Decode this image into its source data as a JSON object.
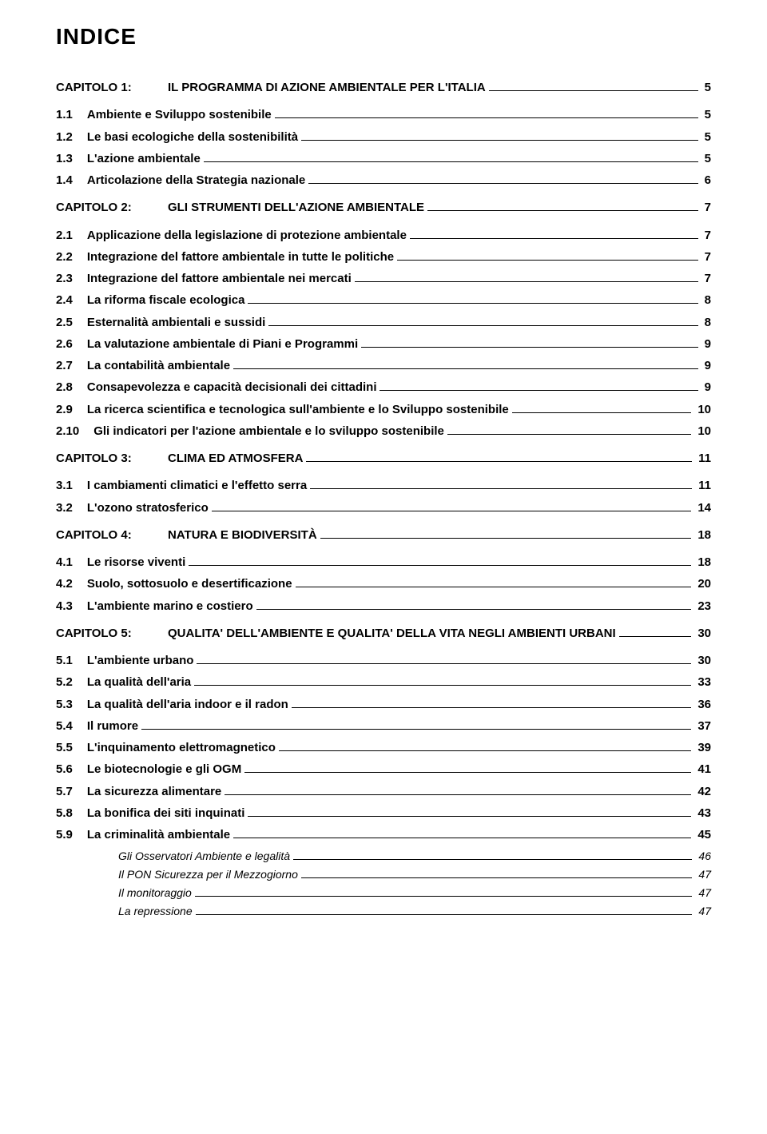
{
  "title": "INDICE",
  "toc": [
    {
      "type": "chapter",
      "num": "CAPITOLO 1:",
      "label": "IL PROGRAMMA DI AZIONE AMBIENTALE PER L'ITALIA",
      "page": "5"
    },
    {
      "type": "entry",
      "num": "1.1",
      "label": "Ambiente e Sviluppo sostenibile",
      "page": "5"
    },
    {
      "type": "entry",
      "num": "1.2",
      "label": "Le basi ecologiche della sostenibilità",
      "page": "5"
    },
    {
      "type": "entry",
      "num": "1.3",
      "label": "L'azione ambientale",
      "page": "5"
    },
    {
      "type": "entry",
      "num": "1.4",
      "label": "Articolazione della Strategia nazionale",
      "page": "6"
    },
    {
      "type": "chapter",
      "num": "CAPITOLO 2:",
      "label": "GLI STRUMENTI DELL'AZIONE AMBIENTALE",
      "page": "7"
    },
    {
      "type": "entry",
      "num": "2.1",
      "label": "Applicazione della legislazione di protezione ambientale",
      "page": "7"
    },
    {
      "type": "entry",
      "num": "2.2",
      "label": "Integrazione del fattore ambientale in tutte le politiche",
      "page": "7"
    },
    {
      "type": "entry",
      "num": "2.3",
      "label": "Integrazione del fattore ambientale nei mercati",
      "page": "7"
    },
    {
      "type": "entry",
      "num": "2.4",
      "label": "La riforma fiscale ecologica",
      "page": "8"
    },
    {
      "type": "entry",
      "num": "2.5",
      "label": "Esternalità ambientali e sussidi",
      "page": "8"
    },
    {
      "type": "entry",
      "num": "2.6",
      "label": "La valutazione ambientale di Piani e Programmi",
      "page": "9"
    },
    {
      "type": "entry",
      "num": "2.7",
      "label": "La contabilità ambientale",
      "page": "9"
    },
    {
      "type": "entry",
      "num": "2.8",
      "label": "Consapevolezza e capacità decisionali dei cittadini",
      "page": "9"
    },
    {
      "type": "entry",
      "num": "2.9",
      "label": "La ricerca scientifica e tecnologica sull'ambiente e lo Sviluppo sostenibile",
      "page": "10"
    },
    {
      "type": "entry",
      "num": "2.10",
      "label": "Gli indicatori per l'azione ambientale e lo sviluppo sostenibile",
      "page": "10"
    },
    {
      "type": "chapter",
      "num": "CAPITOLO 3:",
      "label": "CLIMA ED ATMOSFERA",
      "page": "11"
    },
    {
      "type": "entry",
      "num": "3.1",
      "label": "I cambiamenti climatici e l'effetto serra",
      "page": "11"
    },
    {
      "type": "entry",
      "num": "3.2",
      "label": "L'ozono stratosferico",
      "page": "14"
    },
    {
      "type": "chapter",
      "num": "CAPITOLO 4:",
      "label": "NATURA E BIODIVERSITÀ",
      "page": "18"
    },
    {
      "type": "entry",
      "num": "4.1",
      "label": "Le risorse viventi",
      "page": "18"
    },
    {
      "type": "entry",
      "num": "4.2",
      "label": "Suolo, sottosuolo e desertificazione",
      "page": "20"
    },
    {
      "type": "entry",
      "num": "4.3",
      "label": "L'ambiente marino e costiero",
      "page": "23"
    },
    {
      "type": "chapter",
      "num": "CAPITOLO 5:",
      "label": "QUALITA' DELL'AMBIENTE E QUALITA' DELLA VITA NEGLI AMBIENTI URBANI",
      "page": "30"
    },
    {
      "type": "entry",
      "num": "5.1",
      "label": "L'ambiente urbano",
      "page": "30"
    },
    {
      "type": "entry",
      "num": "5.2",
      "label": "La qualità dell'aria",
      "page": "33"
    },
    {
      "type": "entry",
      "num": "5.3",
      "label": "La qualità dell'aria indoor e il radon",
      "page": "36"
    },
    {
      "type": "entry",
      "num": "5.4",
      "label": "Il rumore",
      "page": "37"
    },
    {
      "type": "entry",
      "num": "5.5",
      "label": "L'inquinamento elettromagnetico",
      "page": "39"
    },
    {
      "type": "entry",
      "num": "5.6",
      "label": "Le biotecnologie e gli OGM",
      "page": "41"
    },
    {
      "type": "entry",
      "num": "5.7",
      "label": "La sicurezza alimentare",
      "page": "42"
    },
    {
      "type": "entry",
      "num": "5.8",
      "label": "La bonifica dei siti inquinati",
      "page": "43"
    },
    {
      "type": "entry",
      "num": "5.9",
      "label": "La criminalità ambientale",
      "page": "45"
    },
    {
      "type": "sub",
      "num": "",
      "label": "Gli Osservatori Ambiente e legalità",
      "page": "46"
    },
    {
      "type": "sub",
      "num": "",
      "label": "Il PON Sicurezza per il Mezzogiorno",
      "page": "47"
    },
    {
      "type": "sub",
      "num": "",
      "label": "Il monitoraggio",
      "page": "47"
    },
    {
      "type": "sub",
      "num": "",
      "label": "La repressione",
      "page": "47"
    }
  ]
}
